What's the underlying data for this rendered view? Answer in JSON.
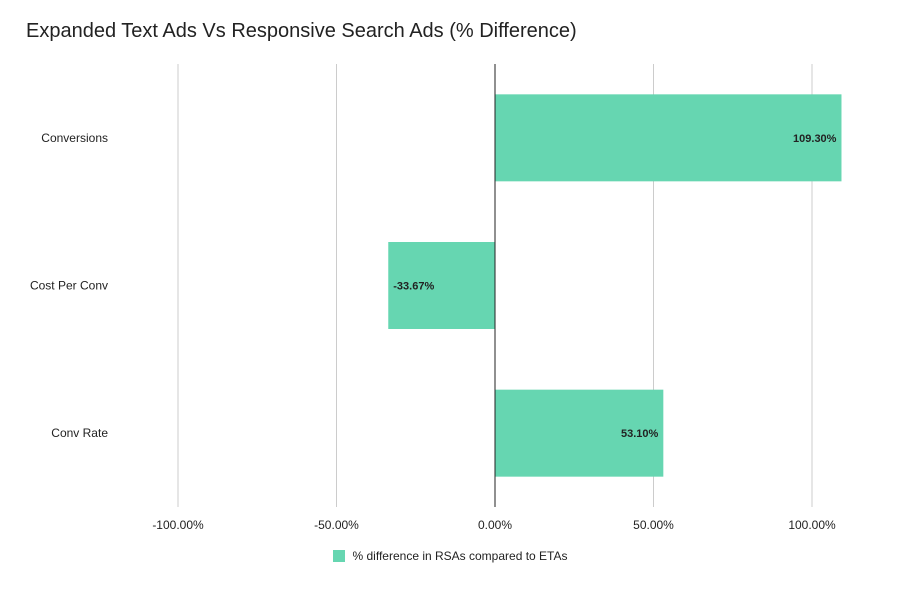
{
  "colors": {
    "bar": "#66d6b1",
    "grid": "#cccccc",
    "zero_axis": "#222222",
    "text": "#222222"
  },
  "chart_data": {
    "type": "bar",
    "orientation": "horizontal",
    "title": "Expanded Text Ads Vs Responsive Search Ads (% Difference)",
    "xlabel": "",
    "ylabel": "",
    "categories": [
      "Conversions",
      "Cost Per Conv",
      "Conv Rate"
    ],
    "series": [
      {
        "name": "% difference in RSAs compared to ETAs",
        "values": [
          109.3,
          -33.67,
          53.1
        ],
        "labels": [
          "109.30%",
          "-33.67%",
          "53.10%"
        ]
      }
    ],
    "xlim": [
      -100,
      100
    ],
    "xticks": [
      -100,
      -50,
      0,
      50,
      100
    ],
    "xtick_labels": [
      "-100.00%",
      "-50.00%",
      "0.00%",
      "50.00%",
      "100.00%"
    ],
    "grid": true,
    "legend": "bottom"
  }
}
